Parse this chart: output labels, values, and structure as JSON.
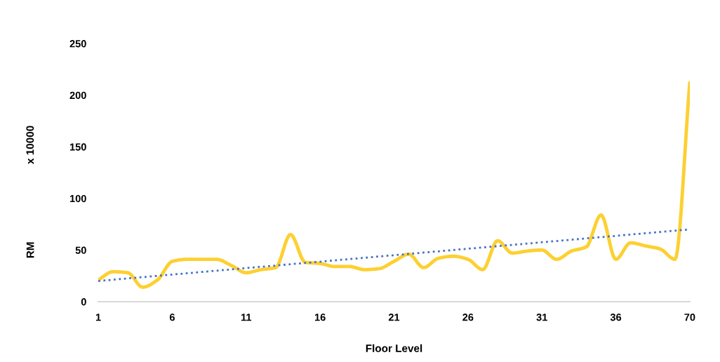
{
  "chart_data": {
    "type": "line",
    "xlabel": "Floor Level",
    "ylabel": "RM",
    "annotations": [
      "x 10000"
    ],
    "categories": [
      "1",
      null,
      null,
      null,
      null,
      "6",
      null,
      null,
      null,
      null,
      "11",
      null,
      null,
      null,
      null,
      "16",
      null,
      null,
      null,
      null,
      "21",
      null,
      null,
      null,
      null,
      "26",
      null,
      null,
      null,
      null,
      "31",
      null,
      null,
      null,
      null,
      "36",
      null,
      null,
      null,
      null,
      "70"
    ],
    "series": [
      {
        "color": "#fdd032",
        "values": [
          21,
          29,
          28,
          14,
          21,
          39,
          41,
          41,
          41,
          35,
          28,
          31,
          33,
          65,
          38,
          37,
          34,
          34,
          31,
          32,
          39,
          46,
          33,
          42,
          44,
          41,
          31,
          59,
          47,
          49,
          50,
          41,
          49,
          53,
          84,
          41,
          57,
          54,
          51,
          41,
          212
        ]
      },
      {
        "color": "#4472c4",
        "line_style": "dotted",
        "values": [
          20,
          null,
          null,
          null,
          null,
          null,
          null,
          null,
          null,
          null,
          null,
          null,
          null,
          null,
          null,
          null,
          null,
          null,
          null,
          null,
          null,
          null,
          null,
          null,
          null,
          null,
          null,
          null,
          null,
          null,
          null,
          null,
          null,
          null,
          null,
          null,
          null,
          null,
          null,
          null,
          70
        ]
      }
    ],
    "ylim": [
      0,
      250
    ],
    "yticks": [
      0,
      50,
      100,
      150,
      200,
      250
    ],
    "grid": false,
    "legend": false
  }
}
